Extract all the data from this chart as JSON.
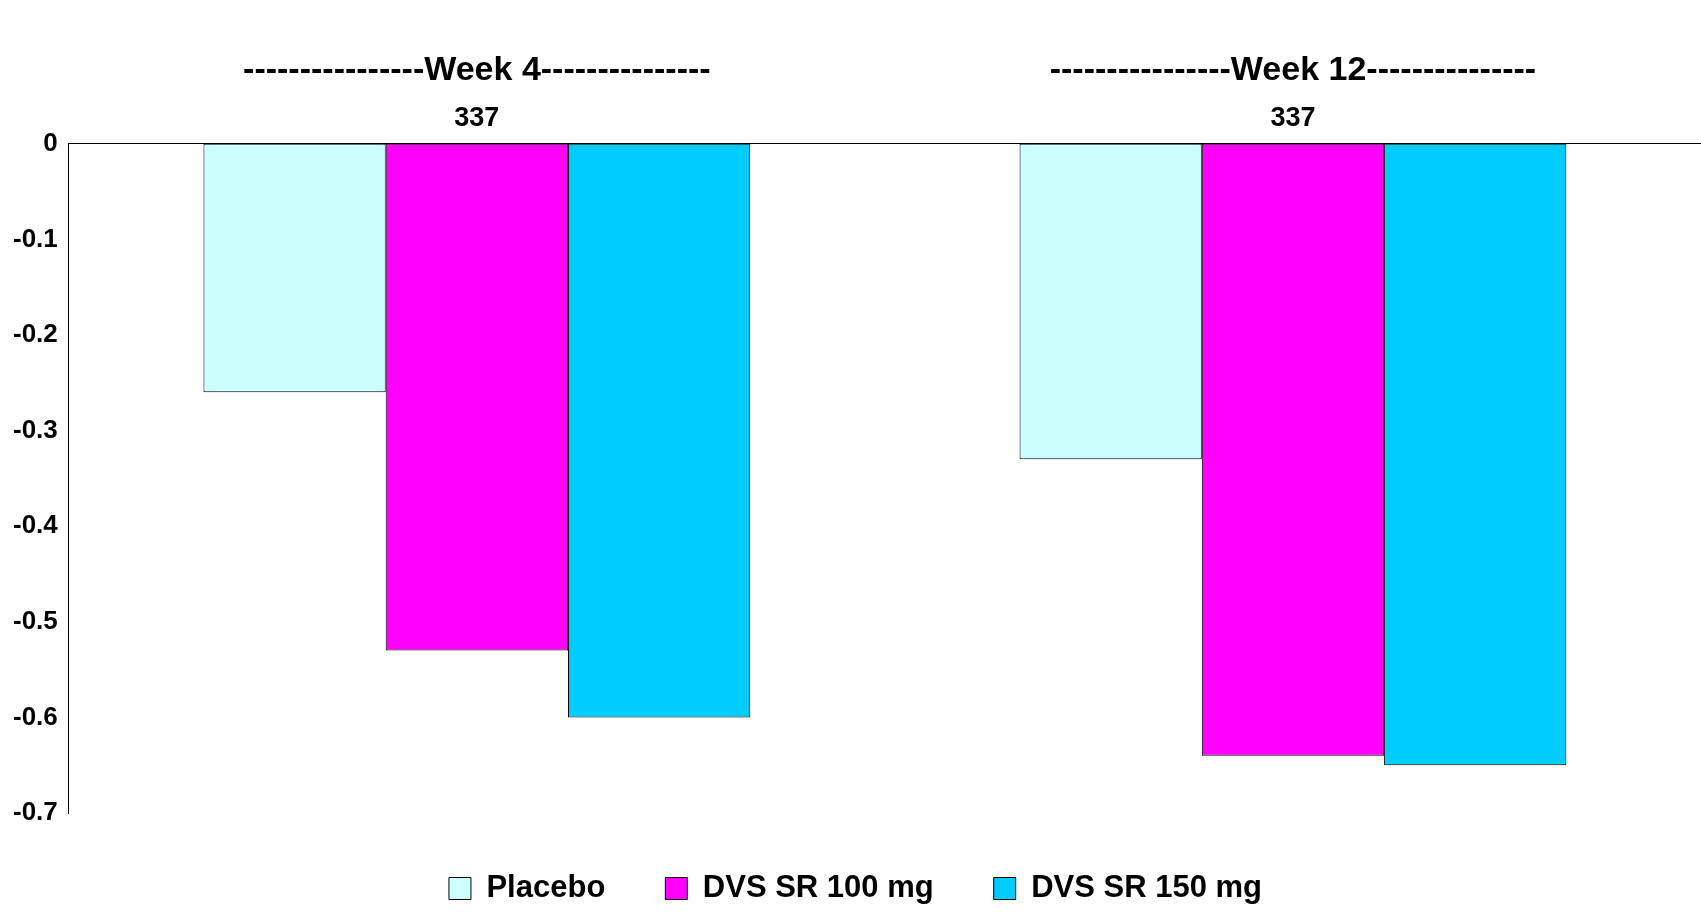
{
  "chart_data": {
    "type": "bar",
    "categories": [
      "----------------Week 4---------------",
      "----------------Week 12---------------"
    ],
    "series": [
      {
        "name": "Placebo",
        "color": "#ccffff",
        "values": [
          -0.26,
          -0.33
        ]
      },
      {
        "name": "DVS SR 100 mg",
        "color": "#ff00ff",
        "values": [
          -0.53,
          -0.64
        ]
      },
      {
        "name": "DVS SR 150 mg",
        "color": "#00ccff",
        "values": [
          -0.6,
          -0.65
        ]
      }
    ],
    "annotations": [
      "337",
      "337"
    ],
    "ylim": [
      -0.7,
      0
    ],
    "yticks": [
      0,
      -0.1,
      -0.2,
      -0.3,
      -0.4,
      -0.5,
      -0.6,
      -0.7
    ],
    "legend": "bottom"
  }
}
